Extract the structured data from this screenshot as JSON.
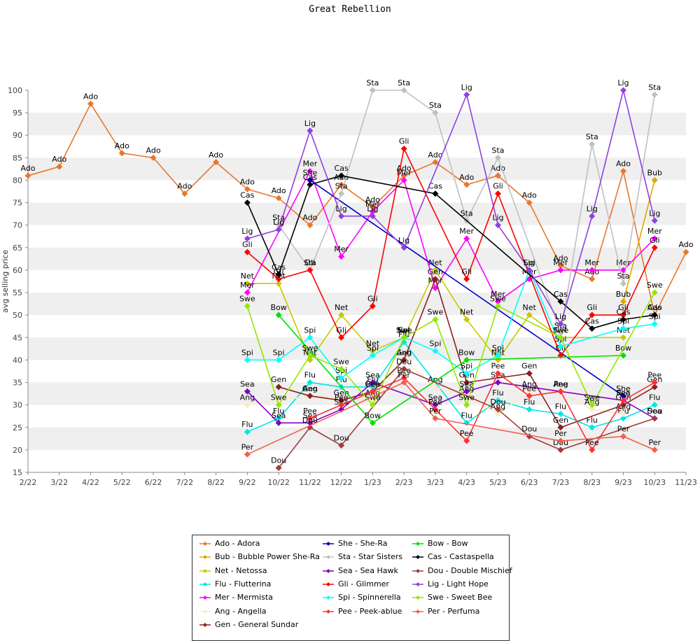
{
  "chart_data": {
    "type": "line",
    "title": "Great Rebellion",
    "xlabel": "",
    "ylabel": "avg selling price",
    "ylim": [
      15,
      100
    ],
    "grid": "horizontal-bands",
    "legend_position": "bottom",
    "categories": [
      "2/22",
      "3/22",
      "4/22",
      "5/22",
      "6/22",
      "7/22",
      "8/22",
      "9/22",
      "10/22",
      "11/22",
      "12/22",
      "1/23",
      "2/23",
      "3/23",
      "4/23",
      "5/23",
      "6/23",
      "7/23",
      "8/23",
      "9/23",
      "10/23",
      "11/23"
    ],
    "yticks": [
      15,
      20,
      25,
      30,
      35,
      40,
      45,
      50,
      55,
      60,
      65,
      70,
      75,
      80,
      85,
      90,
      95,
      100
    ],
    "series": [
      {
        "abbr": "Ado",
        "name": "Ado - Adora",
        "color": "#e8772a",
        "values": [
          81,
          83,
          97,
          86,
          85,
          77,
          84,
          78,
          76,
          70,
          79,
          74,
          81,
          84,
          79,
          81,
          75,
          61,
          58,
          82,
          50,
          64
        ]
      },
      {
        "abbr": "Bub",
        "name": "Bub - Bubble Power She-Ra",
        "color": "#e0a800",
        "values": [
          null,
          null,
          null,
          null,
          null,
          null,
          null,
          null,
          null,
          null,
          null,
          null,
          null,
          null,
          null,
          null,
          null,
          null,
          null,
          53,
          80,
          null
        ]
      },
      {
        "abbr": "Net",
        "name": "Net - Netossa",
        "color": "#c8c800",
        "values": [
          null,
          null,
          null,
          null,
          null,
          null,
          null,
          57,
          57,
          40,
          50,
          42,
          45,
          60,
          49,
          40,
          50,
          45,
          null,
          45,
          null,
          null
        ]
      },
      {
        "abbr": "Flu",
        "name": "Flu - Flutterina",
        "color": "#00e6e6",
        "values": [
          null,
          null,
          null,
          null,
          null,
          null,
          null,
          24,
          27,
          35,
          34,
          34,
          44,
          null,
          26,
          31,
          29,
          28,
          25,
          27,
          30,
          null
        ]
      },
      {
        "abbr": "Mer",
        "name": "Mer - Mermista",
        "color": "#ff00ff",
        "values": [
          null,
          null,
          null,
          null,
          null,
          null,
          null,
          55,
          null,
          82,
          63,
          73,
          80,
          56,
          67,
          53,
          58,
          60,
          60,
          60,
          67,
          null
        ]
      },
      {
        "abbr": "Ang",
        "name": "Ang - Angella",
        "color": "#ffe8c8",
        "values": [
          null,
          null,
          null,
          null,
          null,
          null,
          null,
          30,
          null,
          32,
          null,
          31,
          40,
          34,
          32,
          28,
          33,
          33,
          29,
          28,
          null,
          null
        ]
      },
      {
        "abbr": "Gen",
        "name": "Gen - General Sundar",
        "color": "#8b2020",
        "values": [
          null,
          null,
          null,
          null,
          null,
          null,
          null,
          null,
          34,
          32,
          31,
          33,
          40,
          58,
          35,
          null,
          37,
          25,
          null,
          30,
          34,
          null
        ]
      },
      {
        "abbr": "She",
        "name": "She - She-Ra",
        "color": "#0000cc",
        "values": [
          null,
          null,
          null,
          null,
          null,
          null,
          null,
          null,
          null,
          80,
          null,
          null,
          null,
          null,
          null,
          null,
          null,
          null,
          null,
          32,
          null,
          null
        ]
      },
      {
        "abbr": "Sta",
        "name": "Sta - Star Sisters",
        "color": "#c0c0c0",
        "values": [
          null,
          null,
          null,
          null,
          null,
          null,
          null,
          null,
          70,
          60,
          77,
          100,
          100,
          95,
          71,
          85,
          null,
          46,
          88,
          57,
          99,
          null
        ]
      },
      {
        "abbr": "Sea",
        "name": "Sea - Sea Hawk",
        "color": "#8000c0",
        "values": [
          null,
          null,
          null,
          null,
          null,
          null,
          null,
          33,
          26,
          26,
          29,
          35,
          null,
          30,
          33,
          35,
          null,
          null,
          null,
          31,
          27,
          null
        ]
      },
      {
        "abbr": "Gli",
        "name": "Gli - Glimmer",
        "color": "#ff0000",
        "values": [
          null,
          null,
          null,
          null,
          null,
          null,
          null,
          64,
          58,
          60,
          45,
          52,
          87,
          null,
          58,
          77,
          null,
          41,
          50,
          50,
          65,
          null
        ]
      },
      {
        "abbr": "Spi",
        "name": "Spi - Spinnerella",
        "color": "#00ffff",
        "values": [
          null,
          null,
          null,
          null,
          null,
          null,
          null,
          40,
          40,
          45,
          36,
          41,
          45,
          42,
          37,
          41,
          60,
          43,
          null,
          47,
          48,
          null
        ]
      },
      {
        "abbr": "Pee",
        "name": "Pee - Peek-ablue",
        "color": "#ff3030",
        "values": [
          null,
          null,
          null,
          null,
          null,
          null,
          null,
          null,
          null,
          27,
          30,
          33,
          36,
          29,
          22,
          37,
          32,
          33,
          20,
          31,
          35,
          null
        ]
      },
      {
        "abbr": "Bow",
        "name": "Bow - Bow",
        "color": "#00e000",
        "values": [
          null,
          null,
          null,
          null,
          null,
          null,
          null,
          null,
          50,
          null,
          null,
          26,
          null,
          null,
          40,
          null,
          null,
          null,
          null,
          41,
          null,
          null
        ]
      },
      {
        "abbr": "Dou",
        "name": "Dou - Double Mischief",
        "color": "#a03c3c",
        "values": [
          null,
          null,
          null,
          null,
          null,
          null,
          null,
          null,
          16,
          25,
          21,
          null,
          38,
          null,
          null,
          29,
          23,
          20,
          null,
          null,
          27,
          null
        ]
      },
      {
        "abbr": "Cas",
        "name": "Cas - Castaspella",
        "color": "#000000",
        "values": [
          null,
          null,
          null,
          null,
          null,
          null,
          null,
          75,
          59,
          79,
          81,
          null,
          null,
          77,
          null,
          null,
          null,
          53,
          47,
          49,
          50,
          null
        ]
      },
      {
        "abbr": "Lig",
        "name": "Lig - Light Hope",
        "color": "#9040e0",
        "values": [
          null,
          null,
          null,
          null,
          null,
          null,
          null,
          67,
          69,
          91,
          72,
          72,
          65,
          null,
          99,
          70,
          60,
          48,
          72,
          100,
          71,
          null
        ]
      },
      {
        "abbr": "Swe",
        "name": "Swe - Sweet Bee",
        "color": "#90e800",
        "values": [
          null,
          null,
          null,
          null,
          null,
          null,
          null,
          52,
          30,
          41,
          38,
          30,
          45,
          49,
          30,
          52,
          null,
          45,
          30,
          null,
          55,
          null
        ]
      },
      {
        "abbr": "Per",
        "name": "Per - Perfuma",
        "color": "#f06050",
        "values": [
          null,
          null,
          null,
          null,
          null,
          null,
          null,
          19,
          null,
          null,
          null,
          null,
          35,
          27,
          null,
          null,
          null,
          22,
          null,
          23,
          20,
          null
        ]
      }
    ]
  }
}
